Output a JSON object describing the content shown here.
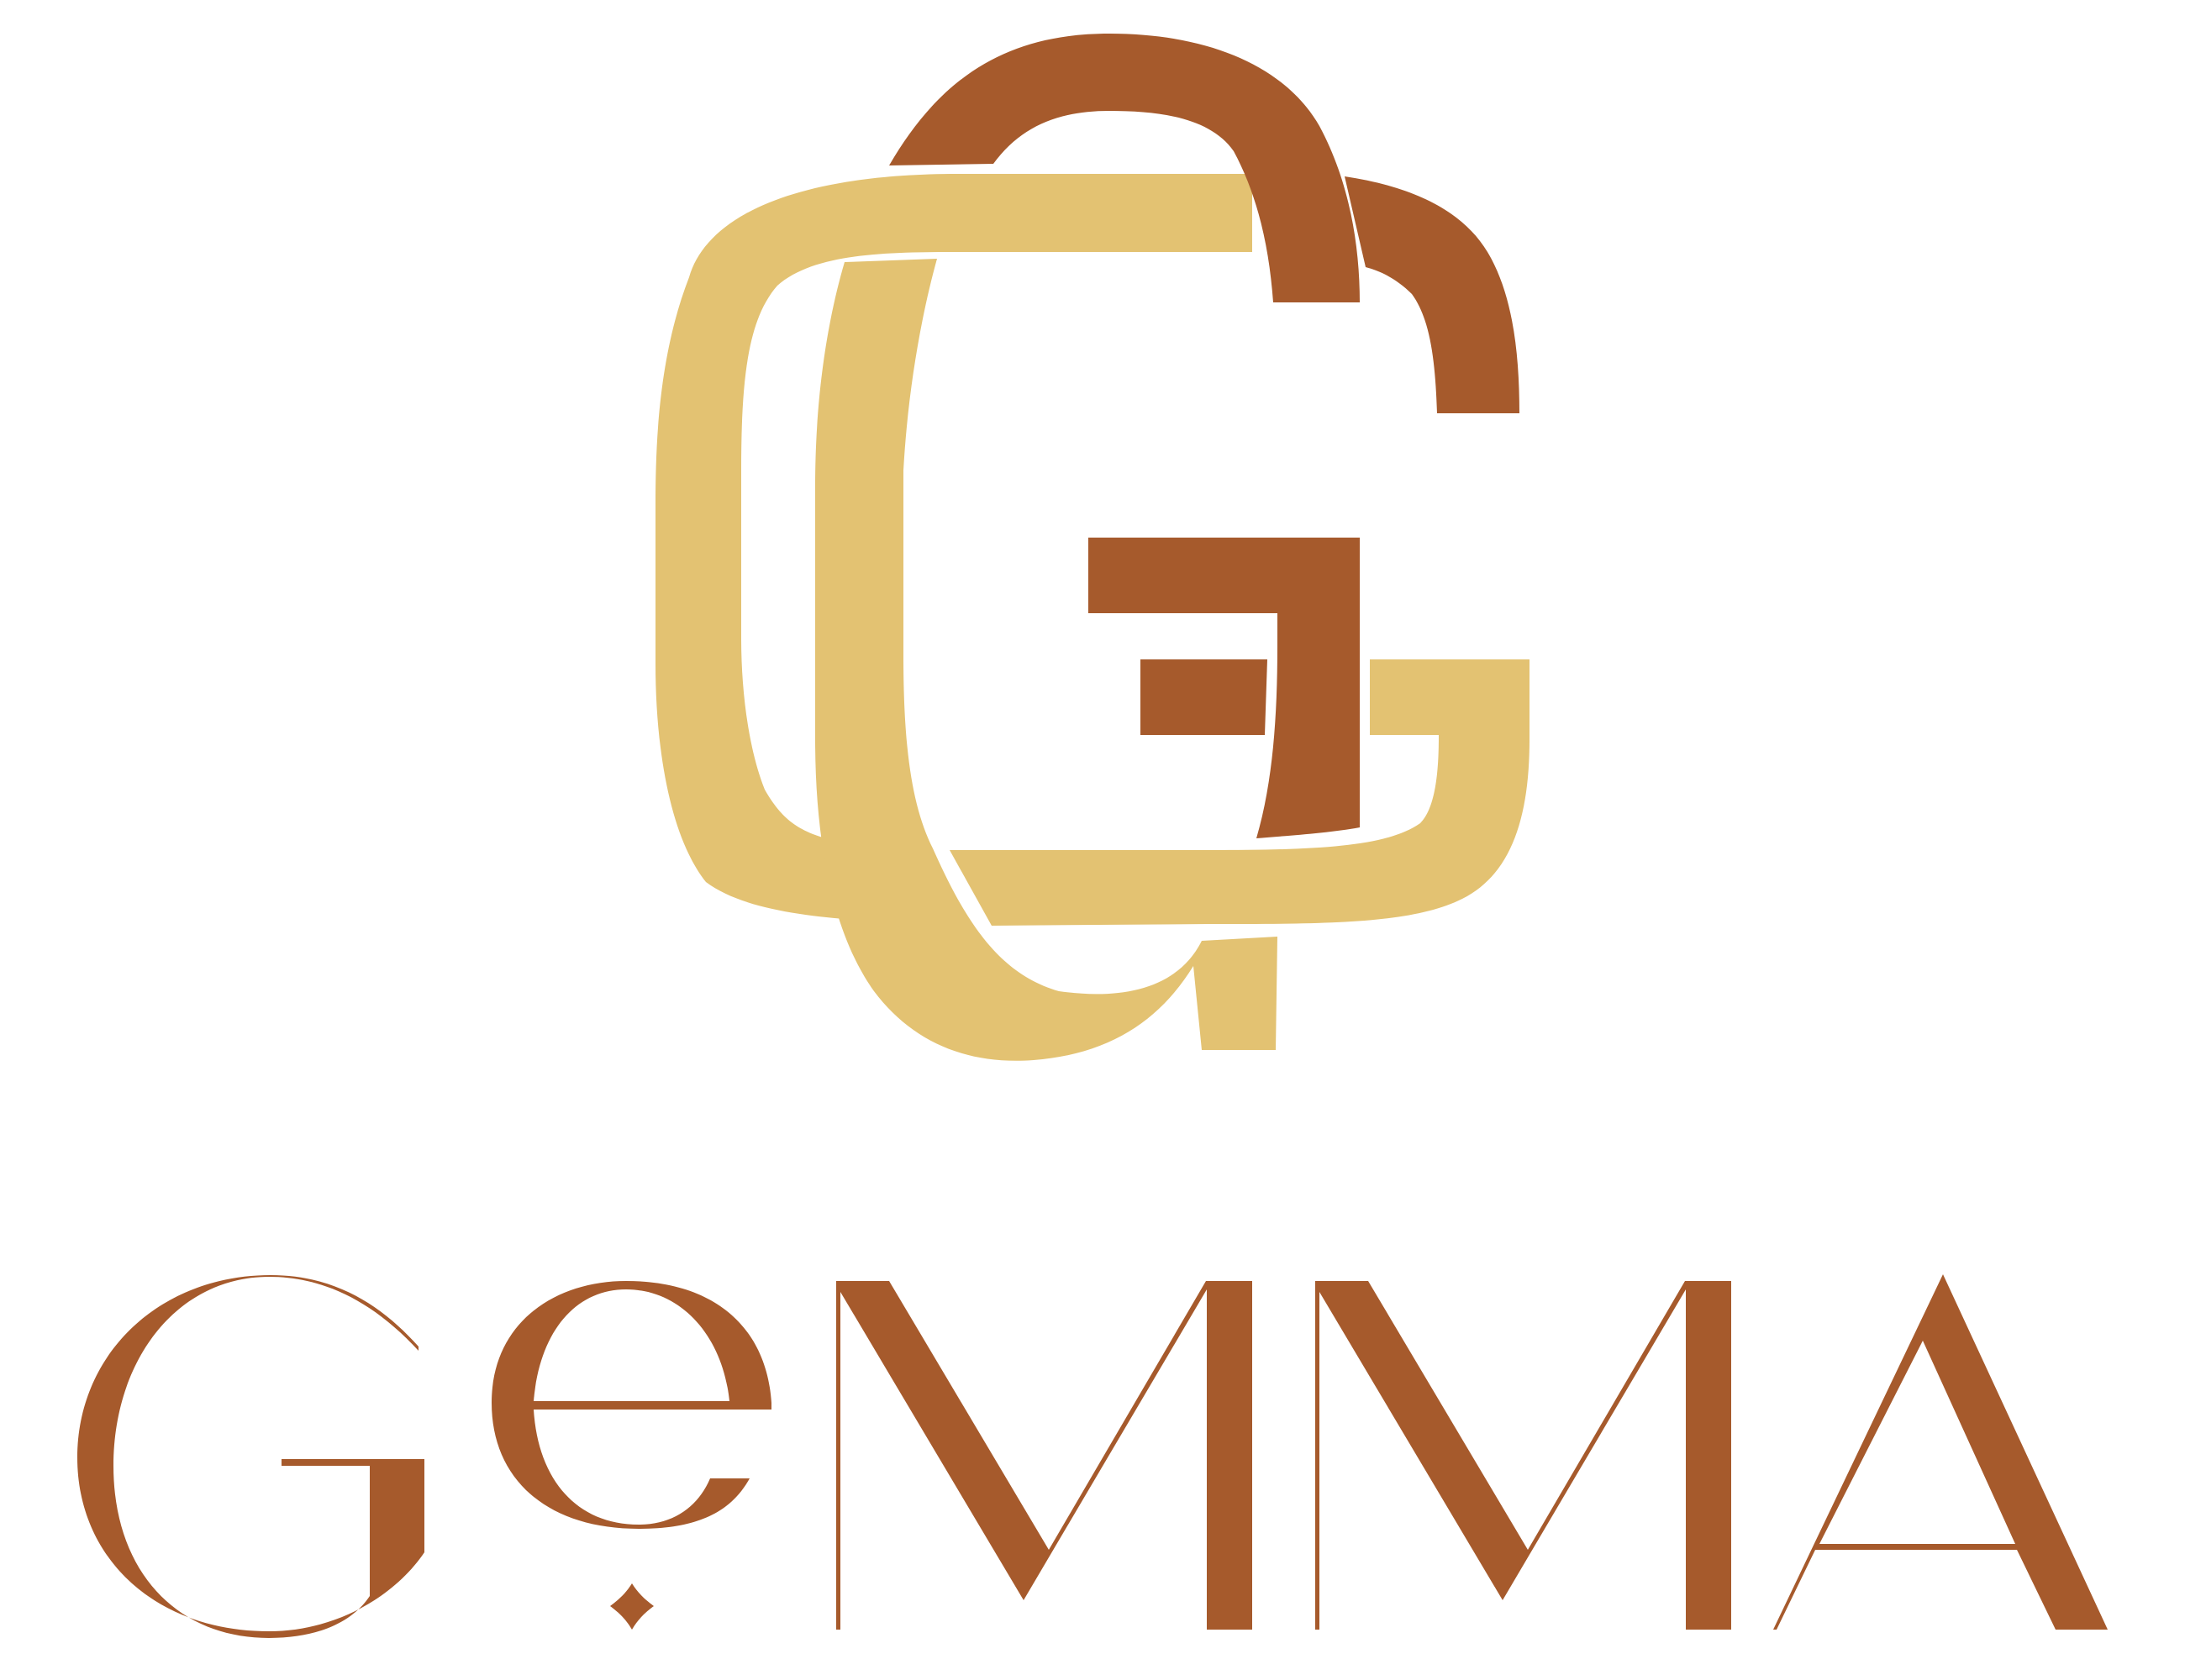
{
  "logo": {
    "monogram": "GG",
    "wordmark": "GeMMA",
    "colors": {
      "gold": "#E3C272",
      "copper": "#A65A2C",
      "background": "#FFFFFF"
    }
  }
}
